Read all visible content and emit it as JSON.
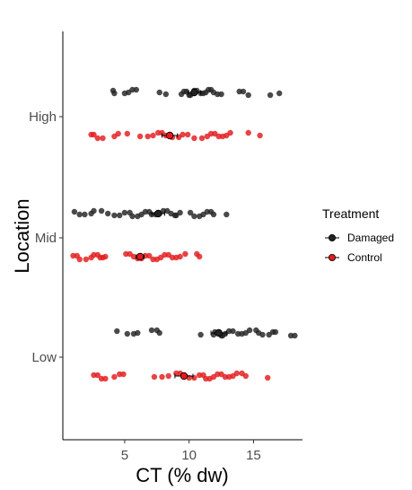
{
  "chart_data": {
    "type": "scatter",
    "xlabel": "CT (% dw)",
    "ylabel": "Location",
    "xlim": [
      0.2,
      18.8
    ],
    "x_ticks": [
      "5",
      "10",
      "15"
    ],
    "x_tick_values": [
      5,
      10,
      15
    ],
    "categories": [
      "High",
      "Mid",
      "Low"
    ],
    "grid": false,
    "legend": {
      "title": "Treatment",
      "position": "right",
      "entries": [
        "Damaged",
        "Control"
      ]
    },
    "colors": {
      "Damaged": "#222222",
      "Control": "#e31a1c"
    },
    "series": [
      {
        "name": "Damaged",
        "groups": [
          {
            "category": "High",
            "mean": 10.4,
            "error": 0.5,
            "points": [
              4.1,
              4.2,
              5.0,
              5.3,
              5.6,
              5.9,
              7.7,
              8.2,
              9.4,
              9.6,
              9.8,
              10.0,
              10.1,
              10.3,
              10.4,
              10.6,
              10.9,
              11.1,
              11.3,
              11.5,
              11.7,
              11.9,
              12.2,
              12.5,
              13.9,
              14.2,
              14.6,
              16.3,
              17.0
            ]
          },
          {
            "category": "Mid",
            "mean": 7.6,
            "error": 0.5,
            "points": [
              1.1,
              1.5,
              1.9,
              2.4,
              2.6,
              3.2,
              3.7,
              4.2,
              4.6,
              5.0,
              5.4,
              5.6,
              6.0,
              6.3,
              6.6,
              6.9,
              7.1,
              7.4,
              7.7,
              8.0,
              8.3,
              8.6,
              8.9,
              9.0,
              9.3,
              10.1,
              10.4,
              10.8,
              11.1,
              11.4,
              11.7,
              11.9,
              12.9
            ]
          },
          {
            "category": "Low",
            "mean": 12.3,
            "error": 0.6,
            "points": [
              4.4,
              5.2,
              5.7,
              6.0,
              7.1,
              7.5,
              7.7,
              10.9,
              11.9,
              12.0,
              12.3,
              12.5,
              12.6,
              12.8,
              13.1,
              13.4,
              13.8,
              14.1,
              14.4,
              14.7,
              15.2,
              15.4,
              15.7,
              16.2,
              16.5,
              16.7,
              17.9,
              18.2
            ]
          }
        ]
      },
      {
        "name": "Control",
        "groups": [
          {
            "category": "High",
            "mean": 8.5,
            "error": 0.6,
            "points": [
              2.4,
              2.6,
              2.9,
              3.3,
              4.2,
              4.5,
              5.2,
              6.2,
              6.8,
              7.2,
              7.6,
              7.9,
              8.2,
              8.7,
              9.2,
              9.5,
              9.9,
              10.4,
              11.0,
              11.4,
              11.7,
              12.0,
              12.3,
              12.6,
              12.9,
              13.2,
              14.6,
              15.5
            ]
          },
          {
            "category": "Mid",
            "mean": 6.2,
            "error": 0.3,
            "points": [
              1.0,
              1.3,
              1.5,
              2.0,
              2.4,
              2.6,
              2.9,
              3.1,
              3.3,
              3.5,
              5.1,
              5.4,
              5.7,
              6.0,
              6.3,
              6.6,
              6.9,
              7.2,
              7.5,
              7.8,
              8.1,
              8.4,
              8.7,
              9.0,
              9.3,
              9.7,
              10.6,
              10.8
            ]
          },
          {
            "category": "Low",
            "mean": 9.6,
            "error": 0.7,
            "points": [
              2.6,
              2.9,
              3.2,
              3.5,
              4.2,
              4.6,
              4.9,
              7.3,
              7.9,
              8.4,
              9.0,
              9.3,
              9.7,
              10.0,
              10.4,
              10.8,
              11.1,
              11.3,
              11.6,
              11.9,
              12.2,
              12.5,
              12.8,
              13.1,
              13.4,
              13.7,
              14.1,
              14.4,
              16.1
            ]
          }
        ]
      }
    ]
  }
}
